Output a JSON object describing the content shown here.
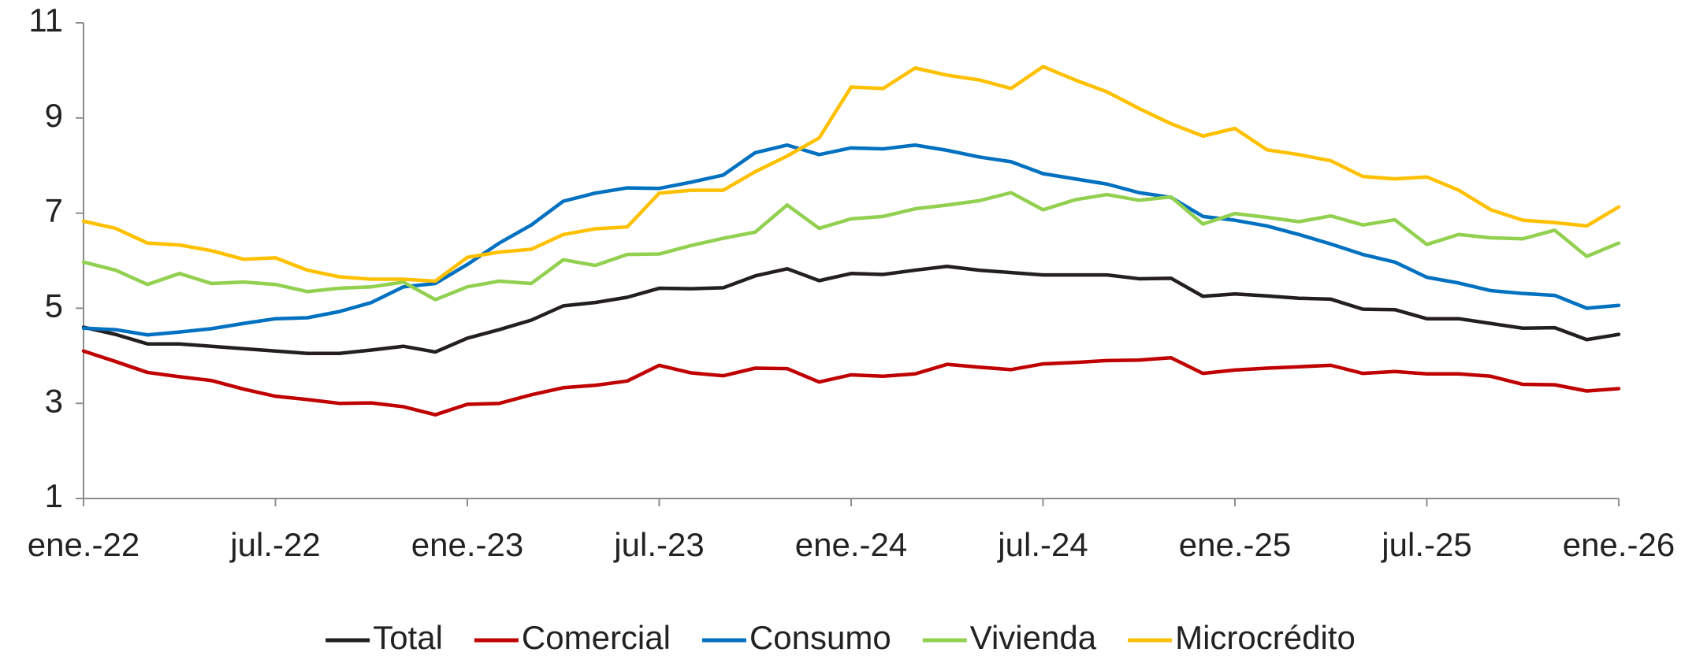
{
  "chart_data": {
    "type": "line",
    "categories": [
      "ene.-22",
      null,
      null,
      null,
      null,
      null,
      "jul.-22",
      null,
      null,
      null,
      null,
      null,
      "ene.-23",
      null,
      null,
      null,
      null,
      null,
      "jul.-23",
      null,
      null,
      null,
      null,
      null,
      "ene.-24",
      null,
      null,
      null,
      null,
      null,
      "jul.-24",
      null,
      null,
      null,
      null,
      null,
      "ene.-25",
      null,
      null,
      null,
      null,
      null,
      "jul.-25",
      null,
      null,
      null,
      null,
      null,
      "ene.-26"
    ],
    "series": [
      {
        "name": "Total",
        "color": "#231f20",
        "values": [
          4.6,
          4.45,
          4.25,
          4.25,
          4.2,
          4.15,
          4.1,
          4.05,
          4.05,
          4.12,
          4.2,
          4.08,
          4.37,
          4.55,
          4.75,
          5.05,
          5.12,
          5.23,
          5.42,
          5.41,
          5.43,
          5.68,
          5.83,
          5.58,
          5.73,
          5.71,
          5.8,
          5.88,
          5.8,
          5.75,
          5.7,
          5.7,
          5.7,
          5.62,
          5.63,
          5.25,
          5.3,
          5.26,
          5.21,
          5.19,
          4.98,
          4.97,
          4.78,
          4.78,
          4.68,
          4.58,
          4.59,
          4.34,
          4.45
        ]
      },
      {
        "name": "Comercial",
        "color": "#c00000",
        "values": [
          4.1,
          3.88,
          3.65,
          3.56,
          3.48,
          3.3,
          3.15,
          3.08,
          3.0,
          3.01,
          2.93,
          2.76,
          2.98,
          3.0,
          3.18,
          3.33,
          3.38,
          3.47,
          3.8,
          3.64,
          3.58,
          3.74,
          3.73,
          3.45,
          3.6,
          3.57,
          3.62,
          3.82,
          3.76,
          3.71,
          3.83,
          3.86,
          3.9,
          3.91,
          3.96,
          3.63,
          3.7,
          3.74,
          3.77,
          3.8,
          3.63,
          3.67,
          3.62,
          3.62,
          3.57,
          3.4,
          3.39,
          3.26,
          3.31
        ]
      },
      {
        "name": "Consumo",
        "color": "#0070c0",
        "values": [
          4.58,
          4.55,
          4.44,
          4.5,
          4.57,
          4.68,
          4.78,
          4.8,
          4.93,
          5.12,
          5.45,
          5.52,
          5.92,
          6.37,
          6.75,
          7.25,
          7.42,
          7.53,
          7.52,
          7.65,
          7.8,
          8.27,
          8.43,
          8.23,
          8.37,
          8.35,
          8.43,
          8.32,
          8.18,
          8.08,
          7.83,
          7.72,
          7.61,
          7.43,
          7.33,
          6.93,
          6.85,
          6.73,
          6.55,
          6.35,
          6.13,
          5.97,
          5.65,
          5.53,
          5.37,
          5.31,
          5.27,
          5.0,
          5.06
        ]
      },
      {
        "name": "Vivienda",
        "color": "#92d050",
        "values": [
          5.97,
          5.8,
          5.5,
          5.73,
          5.52,
          5.55,
          5.5,
          5.35,
          5.42,
          5.45,
          5.55,
          5.18,
          5.45,
          5.57,
          5.52,
          6.02,
          5.9,
          6.13,
          6.14,
          6.32,
          6.47,
          6.6,
          7.17,
          6.68,
          6.88,
          6.93,
          7.09,
          7.17,
          7.26,
          7.43,
          7.07,
          7.28,
          7.39,
          7.27,
          7.34,
          6.77,
          6.99,
          6.91,
          6.82,
          6.94,
          6.75,
          6.86,
          6.34,
          6.55,
          6.48,
          6.46,
          6.64,
          6.09,
          6.37
        ]
      },
      {
        "name": "Microcrédito",
        "color": "#ffc000",
        "values": [
          6.83,
          6.68,
          6.37,
          6.33,
          6.21,
          6.03,
          6.06,
          5.8,
          5.66,
          5.61,
          5.61,
          5.57,
          6.07,
          6.18,
          6.24,
          6.55,
          6.67,
          6.71,
          7.42,
          7.48,
          7.48,
          7.87,
          8.2,
          8.58,
          9.65,
          9.62,
          10.05,
          9.9,
          9.8,
          9.62,
          10.08,
          9.8,
          9.55,
          9.2,
          8.88,
          8.62,
          8.78,
          8.33,
          8.23,
          8.1,
          7.77,
          7.72,
          7.76,
          7.48,
          7.07,
          6.85,
          6.8,
          6.73,
          7.13
        ]
      }
    ],
    "ylim": [
      1,
      11
    ],
    "yticks": [
      1,
      3,
      5,
      7,
      9,
      11
    ],
    "grid": false,
    "legend": "bottom"
  }
}
